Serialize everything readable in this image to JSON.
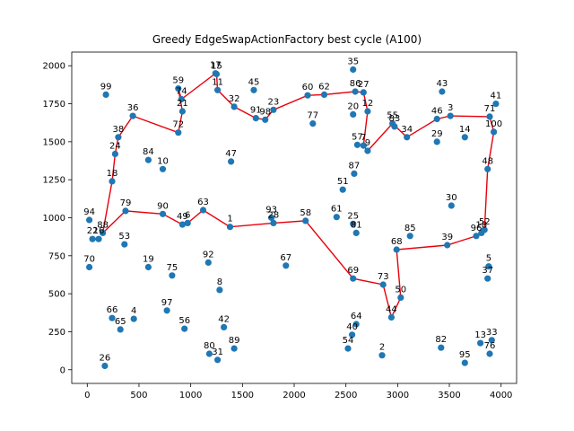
{
  "chart_data": {
    "type": "scatter",
    "title": "Greedy EdgeSwapActionFactory best cycle (A100)",
    "xlabel": "",
    "ylabel": "",
    "xlim": [
      -150,
      4150
    ],
    "ylim": [
      -90,
      2090
    ],
    "xticks": [
      0,
      500,
      1000,
      1500,
      2000,
      2500,
      3000,
      3500,
      4000
    ],
    "yticks": [
      0,
      250,
      500,
      750,
      1000,
      1250,
      1500,
      1750,
      2000
    ],
    "grid": false,
    "legend": "none",
    "colors": {
      "points": "#1f77b4",
      "cycle": "#e8000b",
      "frame": "#000000"
    },
    "points": [
      {
        "id": "99",
        "x": 180,
        "y": 1810
      },
      {
        "id": "36",
        "x": 440,
        "y": 1670
      },
      {
        "id": "38",
        "x": 300,
        "y": 1530
      },
      {
        "id": "24",
        "x": 270,
        "y": 1420
      },
      {
        "id": "18",
        "x": 240,
        "y": 1240
      },
      {
        "id": "94",
        "x": 20,
        "y": 985
      },
      {
        "id": "22",
        "x": 50,
        "y": 860
      },
      {
        "id": "16",
        "x": 110,
        "y": 860
      },
      {
        "id": "88",
        "x": 150,
        "y": 900
      },
      {
        "id": "79",
        "x": 370,
        "y": 1045
      },
      {
        "id": "53",
        "x": 360,
        "y": 825
      },
      {
        "id": "70",
        "x": 20,
        "y": 675
      },
      {
        "id": "66",
        "x": 240,
        "y": 340
      },
      {
        "id": "4",
        "x": 450,
        "y": 335
      },
      {
        "id": "65",
        "x": 320,
        "y": 265
      },
      {
        "id": "26",
        "x": 170,
        "y": 25
      },
      {
        "id": "19",
        "x": 590,
        "y": 675
      },
      {
        "id": "84",
        "x": 590,
        "y": 1380
      },
      {
        "id": "10",
        "x": 730,
        "y": 1320
      },
      {
        "id": "90",
        "x": 730,
        "y": 1025
      },
      {
        "id": "75",
        "x": 820,
        "y": 620
      },
      {
        "id": "97",
        "x": 770,
        "y": 390
      },
      {
        "id": "56",
        "x": 940,
        "y": 270
      },
      {
        "id": "59",
        "x": 880,
        "y": 1850
      },
      {
        "id": "74",
        "x": 910,
        "y": 1780
      },
      {
        "id": "21",
        "x": 920,
        "y": 1700
      },
      {
        "id": "72",
        "x": 880,
        "y": 1560
      },
      {
        "id": "49",
        "x": 920,
        "y": 955
      },
      {
        "id": "6",
        "x": 970,
        "y": 965
      },
      {
        "id": "63",
        "x": 1120,
        "y": 1050
      },
      {
        "id": "92",
        "x": 1170,
        "y": 705
      },
      {
        "id": "8",
        "x": 1280,
        "y": 525
      },
      {
        "id": "42",
        "x": 1320,
        "y": 280
      },
      {
        "id": "80",
        "x": 1180,
        "y": 105
      },
      {
        "id": "31",
        "x": 1260,
        "y": 65
      },
      {
        "id": "89",
        "x": 1420,
        "y": 140
      },
      {
        "id": "17",
        "x": 1240,
        "y": 1950
      },
      {
        "id": "15",
        "x": 1250,
        "y": 1945
      },
      {
        "id": "11",
        "x": 1260,
        "y": 1840
      },
      {
        "id": "32",
        "x": 1420,
        "y": 1730
      },
      {
        "id": "47",
        "x": 1390,
        "y": 1370
      },
      {
        "id": "1",
        "x": 1380,
        "y": 940
      },
      {
        "id": "45",
        "x": 1610,
        "y": 1840
      },
      {
        "id": "91",
        "x": 1630,
        "y": 1655
      },
      {
        "id": "98",
        "x": 1720,
        "y": 1645
      },
      {
        "id": "23",
        "x": 1800,
        "y": 1710
      },
      {
        "id": "93",
        "x": 1780,
        "y": 1000
      },
      {
        "id": "28",
        "x": 1800,
        "y": 965
      },
      {
        "id": "67",
        "x": 1920,
        "y": 685
      },
      {
        "id": "58",
        "x": 2110,
        "y": 980
      },
      {
        "id": "60",
        "x": 2130,
        "y": 1805
      },
      {
        "id": "62",
        "x": 2290,
        "y": 1810
      },
      {
        "id": "77",
        "x": 2180,
        "y": 1620
      },
      {
        "id": "61",
        "x": 2410,
        "y": 1005
      },
      {
        "id": "51",
        "x": 2470,
        "y": 1185
      },
      {
        "id": "35",
        "x": 2570,
        "y": 1975
      },
      {
        "id": "86",
        "x": 2590,
        "y": 1830
      },
      {
        "id": "27",
        "x": 2670,
        "y": 1825
      },
      {
        "id": "20",
        "x": 2570,
        "y": 1680
      },
      {
        "id": "12",
        "x": 2710,
        "y": 1700
      },
      {
        "id": "57",
        "x": 2610,
        "y": 1480
      },
      {
        "id": "7",
        "x": 2670,
        "y": 1475
      },
      {
        "id": "9",
        "x": 2710,
        "y": 1440
      },
      {
        "id": "87",
        "x": 2580,
        "y": 1290
      },
      {
        "id": "25",
        "x": 2570,
        "y": 960
      },
      {
        "id": "81",
        "x": 2600,
        "y": 900
      },
      {
        "id": "69",
        "x": 2570,
        "y": 600
      },
      {
        "id": "64",
        "x": 2600,
        "y": 300
      },
      {
        "id": "40",
        "x": 2560,
        "y": 230
      },
      {
        "id": "54",
        "x": 2520,
        "y": 140
      },
      {
        "id": "2",
        "x": 2850,
        "y": 95
      },
      {
        "id": "73",
        "x": 2860,
        "y": 560
      },
      {
        "id": "50",
        "x": 3030,
        "y": 475
      },
      {
        "id": "44",
        "x": 2940,
        "y": 345
      },
      {
        "id": "68",
        "x": 2990,
        "y": 790
      },
      {
        "id": "85",
        "x": 3120,
        "y": 880
      },
      {
        "id": "55",
        "x": 2950,
        "y": 1620
      },
      {
        "id": "83",
        "x": 2970,
        "y": 1600
      },
      {
        "id": "34",
        "x": 3090,
        "y": 1530
      },
      {
        "id": "43",
        "x": 3430,
        "y": 1830
      },
      {
        "id": "46",
        "x": 3380,
        "y": 1650
      },
      {
        "id": "3",
        "x": 3510,
        "y": 1670
      },
      {
        "id": "29",
        "x": 3380,
        "y": 1500
      },
      {
        "id": "14",
        "x": 3650,
        "y": 1530
      },
      {
        "id": "30",
        "x": 3520,
        "y": 1080
      },
      {
        "id": "39",
        "x": 3480,
        "y": 820
      },
      {
        "id": "96",
        "x": 3760,
        "y": 880
      },
      {
        "id": "52",
        "x": 3840,
        "y": 920
      },
      {
        "id": "18b",
        "x": 3810,
        "y": 900
      },
      {
        "id": "41",
        "x": 3950,
        "y": 1750
      },
      {
        "id": "71",
        "x": 3890,
        "y": 1665
      },
      {
        "id": "100",
        "x": 3930,
        "y": 1565
      },
      {
        "id": "48",
        "x": 3870,
        "y": 1320
      },
      {
        "id": "5",
        "x": 3880,
        "y": 680
      },
      {
        "id": "37",
        "x": 3870,
        "y": 600
      },
      {
        "id": "82",
        "x": 3420,
        "y": 145
      },
      {
        "id": "95",
        "x": 3650,
        "y": 45
      },
      {
        "id": "13",
        "x": 3800,
        "y": 175
      },
      {
        "id": "33",
        "x": 3910,
        "y": 195
      },
      {
        "id": "76",
        "x": 3890,
        "y": 105
      }
    ],
    "cycle": [
      "36",
      "38",
      "24",
      "18",
      "88",
      "79",
      "90",
      "49",
      "6",
      "63",
      "1",
      "28",
      "58",
      "69",
      "73",
      "44",
      "50",
      "68",
      "39",
      "96",
      "52",
      "48",
      "100",
      "71",
      "3",
      "46",
      "34",
      "55",
      "9",
      "7",
      "12",
      "27",
      "86",
      "62",
      "60",
      "23",
      "98",
      "91",
      "32",
      "11",
      "15",
      "17",
      "74",
      "59",
      "21",
      "72",
      "36"
    ],
    "labels_shown": {
      "16": "16",
      "18b": "18"
    }
  }
}
